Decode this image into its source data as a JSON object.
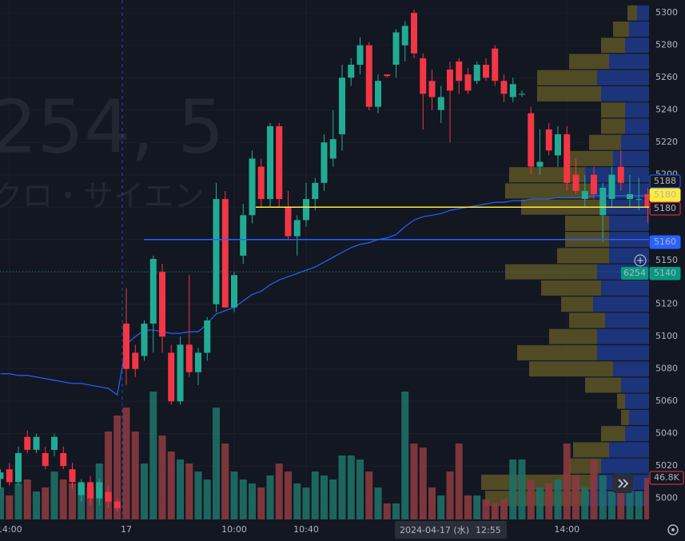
{
  "chart_data": {
    "type": "candlestick",
    "watermark": [
      "254, 5",
      "クロ・サイエン"
    ],
    "up_color": "#22ab94",
    "down_color": "#f23645",
    "categories": [
      null,
      "14:00",
      null,
      null,
      null,
      null,
      null,
      null,
      null,
      null,
      null,
      null,
      null,
      null,
      "17",
      null,
      null,
      null,
      null,
      null,
      null,
      null,
      null,
      null,
      null,
      null,
      "10:00",
      null,
      null,
      null,
      null,
      null,
      null,
      null,
      "10:40",
      null,
      null,
      null,
      null,
      null,
      null,
      null,
      null,
      null,
      null,
      null,
      null,
      null,
      null,
      null,
      null,
      null,
      null,
      null,
      null,
      null,
      null,
      null,
      null,
      null,
      null,
      null,
      null,
      "14:00",
      null,
      null,
      null,
      null,
      null,
      null,
      null,
      null,
      null
    ],
    "open": [
      5012,
      5018,
      5010,
      5038,
      5030,
      5028,
      5030,
      5028,
      5018,
      5002,
      5010,
      5000,
      5004,
      4998,
      5108,
      5090,
      5088,
      5108,
      5140,
      5090,
      5060,
      5095,
      5078,
      5090,
      5120,
      5185,
      5118,
      5150,
      5175,
      5205,
      5185,
      5230,
      5180,
      5162,
      5172,
      5185,
      5195,
      5210,
      5225,
      5260,
      5268,
      5280,
      5242,
      5262,
      5268,
      5280,
      5300,
      5272,
      5258,
      5240,
      5265,
      5270,
      5262,
      5258,
      5268,
      5278,
      5258,
      5248,
      5250,
      5238,
      5205,
      5228,
      5212,
      5225,
      5200,
      5185,
      5200,
      5175,
      5185,
      5205,
      5185,
      5185,
      5188
    ],
    "high": [
      5018,
      5022,
      5032,
      5042,
      5040,
      5032,
      5040,
      5032,
      5022,
      5012,
      5014,
      5012,
      5008,
      5000,
      5130,
      5095,
      5110,
      5150,
      5145,
      5095,
      5100,
      5138,
      5093,
      5112,
      5195,
      5190,
      5140,
      5182,
      5215,
      5210,
      5232,
      5232,
      5190,
      5175,
      5195,
      5198,
      5225,
      5240,
      5268,
      5272,
      5285,
      5282,
      5262,
      5262,
      5290,
      5295,
      5302,
      5275,
      5265,
      5255,
      5270,
      5272,
      5266,
      5270,
      5272,
      5280,
      5262,
      5260,
      5252,
      5242,
      5228,
      5232,
      5230,
      5230,
      5210,
      5200,
      5205,
      5195,
      5205,
      5215,
      5200,
      5198,
      5192
    ],
    "low": [
      5006,
      5008,
      5008,
      5028,
      5028,
      5018,
      5026,
      5018,
      5006,
      4998,
      4996,
      4996,
      4994,
      4992,
      5070,
      5075,
      5085,
      5090,
      5090,
      5058,
      5058,
      5075,
      5070,
      5085,
      5115,
      5118,
      5115,
      5145,
      5170,
      5180,
      5180,
      5180,
      5160,
      5150,
      5168,
      5178,
      5190,
      5205,
      5215,
      5255,
      5262,
      5240,
      5238,
      5260,
      5260,
      5270,
      5272,
      5228,
      5240,
      5232,
      5220,
      5250,
      5250,
      5256,
      5258,
      5255,
      5245,
      5245,
      5248,
      5200,
      5200,
      5212,
      5205,
      5190,
      5188,
      5180,
      5185,
      5158,
      5180,
      5190,
      5180,
      5178,
      5170
    ],
    "close": [
      5016,
      5010,
      5028,
      5030,
      5038,
      5020,
      5038,
      5020,
      5010,
      5010,
      5000,
      5010,
      4998,
      4994,
      5080,
      5080,
      5108,
      5148,
      5100,
      5060,
      5095,
      5078,
      5090,
      5110,
      5185,
      5118,
      5138,
      5175,
      5210,
      5185,
      5230,
      5185,
      5162,
      5172,
      5185,
      5195,
      5220,
      5222,
      5260,
      5268,
      5280,
      5242,
      5258,
      5261,
      5288,
      5292,
      5275,
      5250,
      5248,
      5248,
      5252,
      5258,
      5252,
      5268,
      5260,
      5258,
      5250,
      5256,
      5250,
      5205,
      5208,
      5215,
      5225,
      5195,
      5190,
      5190,
      5188,
      5192,
      5200,
      5195,
      5188,
      5185,
      5180
    ],
    "volume": {
      "values": [
        36000,
        27000,
        40500,
        45000,
        31500,
        36000,
        54000,
        45000,
        40500,
        40500,
        36000,
        63000,
        99000,
        117000,
        126000,
        99000,
        63000,
        144000,
        94500,
        76500,
        67500,
        63000,
        54000,
        45000,
        126000,
        85500,
        54000,
        45000,
        40500,
        36000,
        49500,
        63000,
        54000,
        40500,
        36000,
        54000,
        49500,
        45000,
        72000,
        72000,
        67500,
        54000,
        36000,
        18000,
        18000,
        144000,
        85500,
        81000,
        36000,
        27000,
        54000,
        85500,
        27000,
        27000,
        22500,
        18000,
        22500,
        67500,
        67500,
        45000,
        36000,
        40500,
        45000,
        85500,
        49500,
        36000,
        67500,
        49500,
        31500,
        31500,
        36000,
        31500,
        46800
      ],
      "y2lim": [
        0,
        585000
      ],
      "up_color": "#1f6f66",
      "down_color": "#8a3a3f"
    },
    "volume_marker": {
      "value": 46800,
      "label": "46.8K",
      "color": "#f23645"
    },
    "vwap": {
      "color": "#2962ff",
      "values": [
        5077,
        5077,
        5076,
        5076,
        5075,
        5074,
        5073,
        5072,
        5071,
        5071,
        5070,
        5069,
        5068,
        5064,
        5095,
        5100,
        5104,
        5104,
        5103,
        5102,
        5102,
        5103,
        5103,
        5108,
        5114,
        5116,
        5118,
        5122,
        5126,
        5128,
        5132,
        5135,
        5137,
        5139,
        5141,
        5143,
        5146,
        5149,
        5152,
        5155,
        5157,
        5158,
        5160,
        5161,
        5163,
        5168,
        5172,
        5174,
        5175,
        5176,
        5178,
        5179,
        5180,
        5181,
        5182,
        5183,
        5183,
        5184,
        5184,
        5185,
        5185,
        5185,
        5186,
        5186,
        5186,
        5186,
        5187,
        5187,
        5187,
        5187,
        5187,
        5187,
        5187
      ]
    },
    "profile": {
      "levels": [
        5000,
        5010,
        5020,
        5030,
        5040,
        5050,
        5060,
        5070,
        5080,
        5090,
        5100,
        5110,
        5120,
        5130,
        5140,
        5150,
        5160,
        5170,
        5180,
        5190,
        5200,
        5210,
        5220,
        5230,
        5240,
        5250,
        5260,
        5270,
        5280,
        5290,
        5300
      ],
      "series": [
        {
          "color": "#1e3a8a",
          "values": [
            75,
            70,
            60,
            50,
            30,
            25,
            30,
            35,
            45,
            65,
            65,
            55,
            70,
            60,
            65,
            50,
            50,
            50,
            60,
            70,
            80,
            45,
            35,
            30,
            30,
            60,
            65,
            50,
            30,
            25,
            15
          ]
        },
        {
          "color": "#5c5526",
          "values": [
            130,
            140,
            40,
            45,
            30,
            10,
            10,
            45,
            105,
            100,
            60,
            45,
            40,
            75,
            115,
            65,
            55,
            55,
            100,
            110,
            95,
            60,
            40,
            30,
            30,
            80,
            75,
            50,
            30,
            20,
            12
          ]
        }
      ]
    },
    "ylim": [
      4987,
      5308
    ],
    "yticks": [
      5000,
      5020,
      5040,
      5060,
      5080,
      5100,
      5120,
      5140,
      5160,
      5180,
      5200,
      5220,
      5240,
      5260,
      5280,
      5300
    ],
    "grid": true,
    "price_labels": [
      {
        "value": 5188,
        "color": "#2962ff",
        "filled": false
      },
      {
        "value": 5180,
        "color": "#ffeb3b",
        "filled": true
      },
      {
        "value": 5180,
        "color": "#f23645",
        "filled": false
      },
      {
        "value": 5160,
        "color": "#2962ff",
        "filled": true
      },
      {
        "value": 5140,
        "color": "#089981",
        "filled": true,
        "tag": "6254"
      }
    ],
    "crosshair": {
      "price": 5150,
      "date": "2024-04-17 (水)",
      "time": "12:55"
    }
  }
}
